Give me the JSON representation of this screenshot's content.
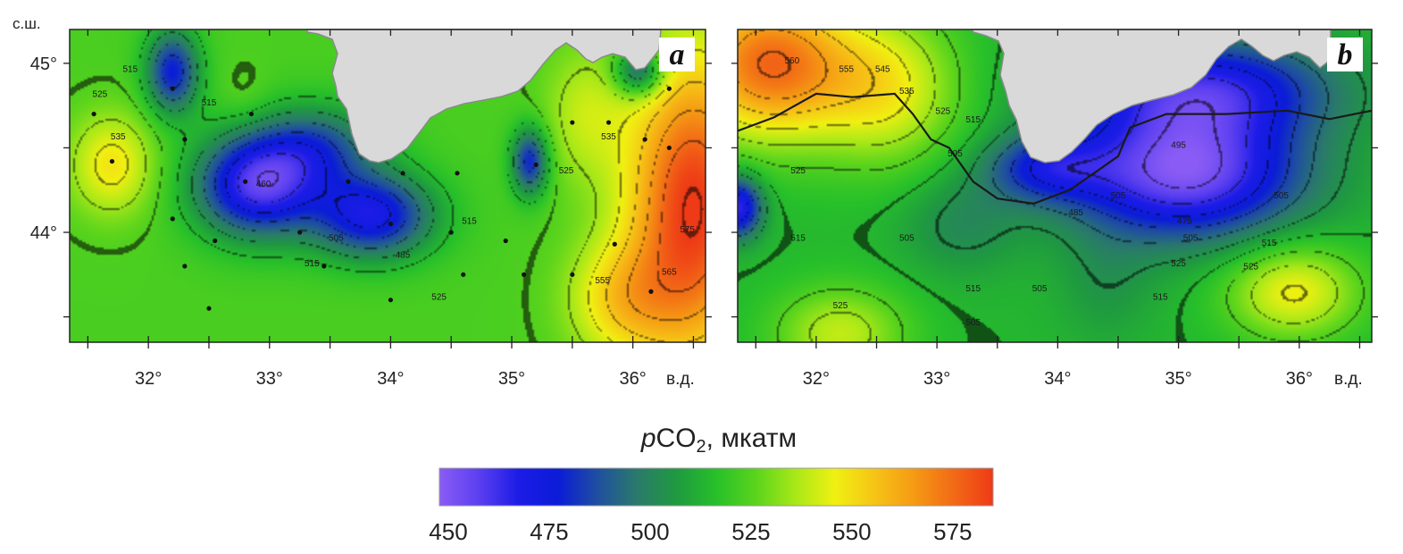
{
  "axis_labels": {
    "lat_unit": "с.ш.",
    "lon_unit": "в.д."
  },
  "colorbar": {
    "title_italic": "p",
    "title_main": "CO",
    "title_sub": "2",
    "title_unit": ", мкатм",
    "ticks": [
      "450",
      "475",
      "500",
      "525",
      "550",
      "575"
    ],
    "stops": [
      "#8a5cf5",
      "#5b3ff0",
      "#1c1ce6",
      "#0b1cd8",
      "#1f4fa0",
      "#2a7a6a",
      "#1f9a40",
      "#27c02a",
      "#5ad41c",
      "#a8e818",
      "#f0f012",
      "#f6c416",
      "#f59a14",
      "#f26a16",
      "#ee3a16"
    ]
  },
  "chart_data": [
    {
      "type": "heatmap",
      "title": "a",
      "xlabel": "в.д.",
      "ylabel": "с.ш.",
      "xticks": [
        "32°",
        "33°",
        "34°",
        "35°",
        "36°"
      ],
      "yticks": [
        "45°",
        "44°"
      ],
      "xlim": [
        31.35,
        36.6
      ],
      "ylim": [
        43.35,
        45.2
      ],
      "value_range": [
        450,
        585
      ],
      "background": 524,
      "anomalies": [
        {
          "lon": 32.2,
          "lat": 44.95,
          "value": -45,
          "rx": 0.22,
          "ry": 0.25
        },
        {
          "lon": 32.9,
          "lat": 44.28,
          "value": -62,
          "rx": 0.5,
          "ry": 0.3
        },
        {
          "lon": 33.85,
          "lat": 44.1,
          "value": -52,
          "rx": 0.5,
          "ry": 0.25
        },
        {
          "lon": 33.4,
          "lat": 44.5,
          "value": -32,
          "rx": 0.5,
          "ry": 0.25
        },
        {
          "lon": 35.15,
          "lat": 44.42,
          "value": -44,
          "rx": 0.15,
          "ry": 0.2
        },
        {
          "lon": 36.05,
          "lat": 44.95,
          "value": -40,
          "rx": 0.2,
          "ry": 0.14
        },
        {
          "lon": 31.7,
          "lat": 44.4,
          "value": 25,
          "rx": 0.35,
          "ry": 0.3
        },
        {
          "lon": 32.8,
          "lat": 44.8,
          "value": 4,
          "rx": 0.2,
          "ry": 0.2
        },
        {
          "lon": 36.5,
          "lat": 44.15,
          "value": 62,
          "rx": 0.55,
          "ry": 0.9
        },
        {
          "lon": 35.9,
          "lat": 43.6,
          "value": 25,
          "rx": 0.45,
          "ry": 0.35
        },
        {
          "lon": 35.6,
          "lat": 44.7,
          "value": 15,
          "rx": 0.35,
          "ry": 0.4
        }
      ],
      "contour_labels": [
        {
          "lon": 31.6,
          "lat": 44.8,
          "text": "525"
        },
        {
          "lon": 31.75,
          "lat": 44.55,
          "text": "535"
        },
        {
          "lon": 31.85,
          "lat": 44.95,
          "text": "515"
        },
        {
          "lon": 32.5,
          "lat": 44.75,
          "text": "515"
        },
        {
          "lon": 32.95,
          "lat": 44.27,
          "text": "460"
        },
        {
          "lon": 33.55,
          "lat": 43.95,
          "text": "505"
        },
        {
          "lon": 33.35,
          "lat": 43.8,
          "text": "515"
        },
        {
          "lon": 34.1,
          "lat": 43.85,
          "text": "485"
        },
        {
          "lon": 34.65,
          "lat": 44.05,
          "text": "515"
        },
        {
          "lon": 34.4,
          "lat": 43.6,
          "text": "525"
        },
        {
          "lon": 35.45,
          "lat": 44.35,
          "text": "525"
        },
        {
          "lon": 35.8,
          "lat": 44.55,
          "text": "535"
        },
        {
          "lon": 35.75,
          "lat": 43.7,
          "text": "555"
        },
        {
          "lon": 36.3,
          "lat": 43.75,
          "text": "565"
        },
        {
          "lon": 36.45,
          "lat": 44.0,
          "text": "575"
        }
      ],
      "stations": [
        [
          31.55,
          44.7
        ],
        [
          31.7,
          44.42
        ],
        [
          32.2,
          44.85
        ],
        [
          32.3,
          44.55
        ],
        [
          32.2,
          44.08
        ],
        [
          32.3,
          43.8
        ],
        [
          32.5,
          43.55
        ],
        [
          32.55,
          43.95
        ],
        [
          32.8,
          44.3
        ],
        [
          32.85,
          44.7
        ],
        [
          33.25,
          44.0
        ],
        [
          33.45,
          43.8
        ],
        [
          33.65,
          44.3
        ],
        [
          34.0,
          43.6
        ],
        [
          34.0,
          44.05
        ],
        [
          34.1,
          44.35
        ],
        [
          34.5,
          44.0
        ],
        [
          34.6,
          43.75
        ],
        [
          34.55,
          44.35
        ],
        [
          34.95,
          43.95
        ],
        [
          35.1,
          43.75
        ],
        [
          35.2,
          44.4
        ],
        [
          35.5,
          44.65
        ],
        [
          35.5,
          43.75
        ],
        [
          35.85,
          43.93
        ],
        [
          35.8,
          44.65
        ],
        [
          36.1,
          44.55
        ],
        [
          36.15,
          43.65
        ],
        [
          36.3,
          44.85
        ],
        [
          36.3,
          44.5
        ]
      ]
    },
    {
      "type": "heatmap",
      "title": "b",
      "xlabel": "в.д.",
      "ylabel": "с.ш.",
      "xticks": [
        "32°",
        "33°",
        "34°",
        "35°",
        "36°"
      ],
      "yticks": [
        "45°",
        "44°"
      ],
      "xlim": [
        31.35,
        36.6
      ],
      "ylim": [
        43.35,
        45.2
      ],
      "value_range": [
        450,
        585
      ],
      "background": 515,
      "anomalies": [
        {
          "lon": 31.6,
          "lat": 45.0,
          "value": 60,
          "rx": 0.7,
          "ry": 0.45
        },
        {
          "lon": 32.6,
          "lat": 44.85,
          "value": 30,
          "rx": 0.6,
          "ry": 0.45
        },
        {
          "lon": 35.05,
          "lat": 44.35,
          "value": -62,
          "rx": 0.95,
          "ry": 0.38
        },
        {
          "lon": 35.2,
          "lat": 44.85,
          "value": -45,
          "rx": 1.05,
          "ry": 0.3
        },
        {
          "lon": 33.9,
          "lat": 44.38,
          "value": -30,
          "rx": 0.5,
          "ry": 0.2
        },
        {
          "lon": 31.35,
          "lat": 44.15,
          "value": -50,
          "rx": 0.2,
          "ry": 0.18
        },
        {
          "lon": 33.2,
          "lat": 44.05,
          "value": -12,
          "rx": 0.5,
          "ry": 0.3
        },
        {
          "lon": 34.4,
          "lat": 43.7,
          "value": -8,
          "rx": 0.4,
          "ry": 0.35
        },
        {
          "lon": 35.95,
          "lat": 43.65,
          "value": 32,
          "rx": 0.55,
          "ry": 0.28
        },
        {
          "lon": 32.2,
          "lat": 43.4,
          "value": 25,
          "rx": 0.55,
          "ry": 0.28
        }
      ],
      "contour_labels": [
        {
          "lon": 31.8,
          "lat": 45.0,
          "text": "560"
        },
        {
          "lon": 32.25,
          "lat": 44.95,
          "text": "555"
        },
        {
          "lon": 32.55,
          "lat": 44.95,
          "text": "545"
        },
        {
          "lon": 32.75,
          "lat": 44.82,
          "text": "535"
        },
        {
          "lon": 33.05,
          "lat": 44.7,
          "text": "525"
        },
        {
          "lon": 33.3,
          "lat": 44.65,
          "text": "515"
        },
        {
          "lon": 33.15,
          "lat": 44.45,
          "text": "505"
        },
        {
          "lon": 31.85,
          "lat": 44.35,
          "text": "525"
        },
        {
          "lon": 31.85,
          "lat": 43.95,
          "text": "515"
        },
        {
          "lon": 32.2,
          "lat": 43.55,
          "text": "525"
        },
        {
          "lon": 32.75,
          "lat": 43.95,
          "text": "505"
        },
        {
          "lon": 33.3,
          "lat": 43.65,
          "text": "515"
        },
        {
          "lon": 33.3,
          "lat": 43.45,
          "text": "505"
        },
        {
          "lon": 33.85,
          "lat": 43.65,
          "text": "505"
        },
        {
          "lon": 34.15,
          "lat": 44.1,
          "text": "485"
        },
        {
          "lon": 34.5,
          "lat": 44.2,
          "text": "505"
        },
        {
          "lon": 35.0,
          "lat": 44.5,
          "text": "495"
        },
        {
          "lon": 35.05,
          "lat": 44.05,
          "text": "475"
        },
        {
          "lon": 35.1,
          "lat": 43.95,
          "text": "505"
        },
        {
          "lon": 35.0,
          "lat": 43.8,
          "text": "525"
        },
        {
          "lon": 35.85,
          "lat": 44.2,
          "text": "505"
        },
        {
          "lon": 35.75,
          "lat": 43.92,
          "text": "515"
        },
        {
          "lon": 35.6,
          "lat": 43.78,
          "text": "525"
        },
        {
          "lon": 34.85,
          "lat": 43.6,
          "text": "515"
        }
      ],
      "track": [
        [
          31.35,
          44.6
        ],
        [
          31.65,
          44.68
        ],
        [
          32.0,
          44.82
        ],
        [
          32.3,
          44.8
        ],
        [
          32.65,
          44.82
        ],
        [
          32.8,
          44.7
        ],
        [
          32.95,
          44.55
        ],
        [
          33.1,
          44.5
        ],
        [
          33.3,
          44.3
        ],
        [
          33.5,
          44.2
        ],
        [
          33.8,
          44.17
        ],
        [
          34.1,
          44.25
        ],
        [
          34.3,
          44.35
        ],
        [
          34.5,
          44.45
        ],
        [
          34.6,
          44.62
        ],
        [
          34.9,
          44.7
        ],
        [
          35.4,
          44.7
        ],
        [
          35.9,
          44.72
        ],
        [
          36.25,
          44.67
        ],
        [
          36.6,
          44.72
        ]
      ]
    }
  ]
}
